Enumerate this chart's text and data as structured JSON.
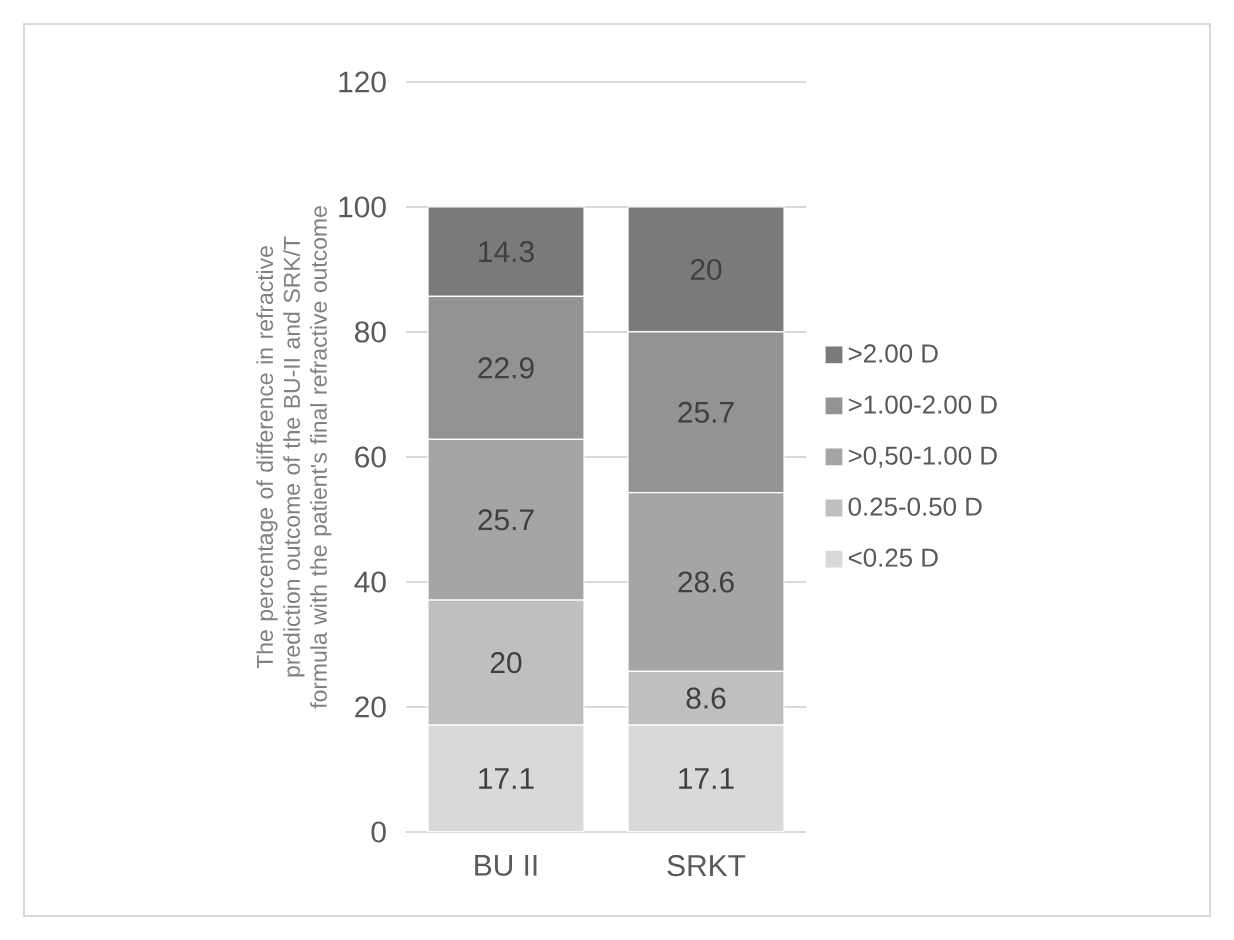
{
  "chart_data": {
    "type": "bar",
    "stacked": true,
    "ylabel": "The percentage of difference in refractive prediction outcome of the BU-II and SRK/T formula with the patient's final refractive outcome",
    "categories": [
      "BU II",
      "SRKT"
    ],
    "series": [
      {
        "name": "<0.25 D",
        "color": "#d9d9d9",
        "values": [
          17.1,
          17.1
        ]
      },
      {
        "name": "0.25-0.50 D",
        "color": "#bfbfbf",
        "values": [
          20,
          8.6
        ]
      },
      {
        "name": ">0,50-1.00 D",
        "color": "#a5a5a5",
        "values": [
          25.7,
          28.6
        ]
      },
      {
        "name": ">1.00-2.00 D",
        "color": "#939393",
        "values": [
          22.9,
          25.7
        ]
      },
      {
        "name": ">2.00 D",
        "color": "#7a7a7a",
        "values": [
          14.3,
          20
        ]
      }
    ],
    "ylim": [
      0,
      120
    ],
    "yticks": [
      0,
      20,
      40,
      60,
      80,
      100,
      120
    ],
    "grid": "y",
    "legend": "right",
    "data_labels": true
  }
}
